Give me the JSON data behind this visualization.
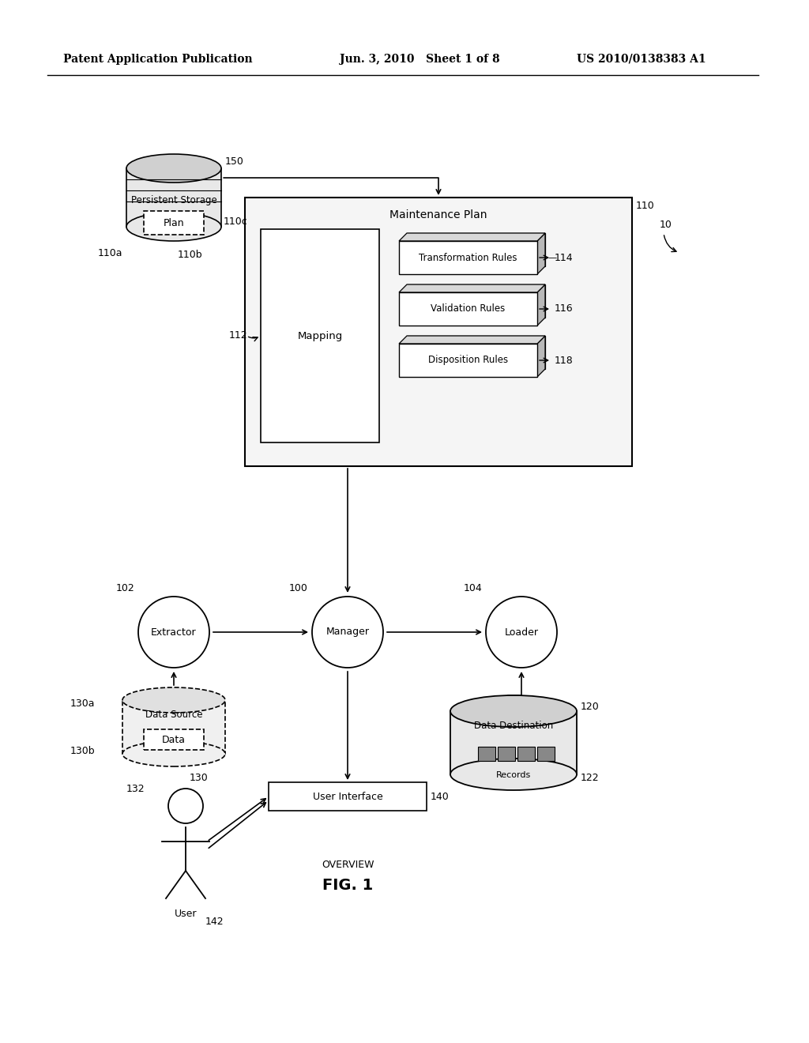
{
  "bg_color": "#ffffff",
  "header_left": "Patent Application Publication",
  "header_mid": "Jun. 3, 2010   Sheet 1 of 8",
  "header_right": "US 2010/0138383 A1",
  "fig_label": "FIG. 1",
  "fig_sublabel": "OVERVIEW",
  "ref_10": "10",
  "ref_100": "100",
  "ref_102": "102",
  "ref_104": "104",
  "ref_110": "110",
  "ref_110a": "110a",
  "ref_110b": "110b",
  "ref_110c": "110c",
  "ref_112": "112",
  "ref_114": "114",
  "ref_116": "116",
  "ref_118": "118",
  "ref_120": "120",
  "ref_122": "122",
  "ref_130": "130",
  "ref_130a": "130a",
  "ref_130b": "130b",
  "ref_132": "132",
  "ref_140": "140",
  "ref_142": "142",
  "ref_150": "150",
  "label_persistent_storage": "Persistent Storage",
  "label_plan": "Plan",
  "label_maintenance_plan": "Maintenance Plan",
  "label_mapping": "Mapping",
  "label_transformation": "Transformation Rules",
  "label_validation": "Validation Rules",
  "label_disposition": "Disposition Rules",
  "label_extractor": "Extractor",
  "label_manager": "Manager",
  "label_loader": "Loader",
  "label_data_source": "Data Source",
  "label_data": "Data",
  "label_data_destination": "Data Destination",
  "label_records": "Records",
  "label_user_interface": "User Interface",
  "label_user": "User"
}
